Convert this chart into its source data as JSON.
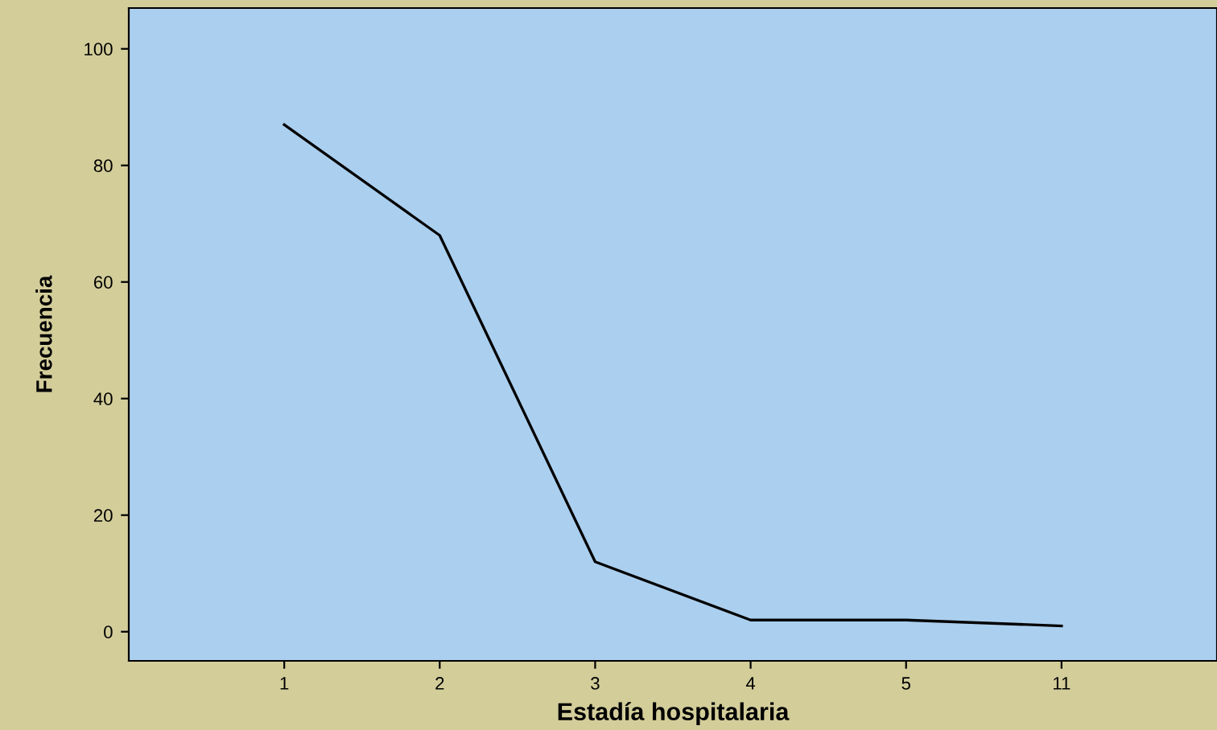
{
  "chart_data": {
    "type": "line",
    "xlabel": "Estadía hospitalaria",
    "ylabel": "Frecuencia",
    "categories": [
      "1",
      "2",
      "3",
      "4",
      "5",
      "11"
    ],
    "series": [
      {
        "color": "#000000",
        "values": [
          87,
          68,
          12,
          2,
          2,
          1
        ]
      }
    ],
    "ylim": [
      -5,
      107
    ],
    "yticks": [
      0,
      20,
      40,
      60,
      80,
      100
    ],
    "grid": false,
    "legend": false,
    "marker": "none",
    "line_style": "solid"
  }
}
